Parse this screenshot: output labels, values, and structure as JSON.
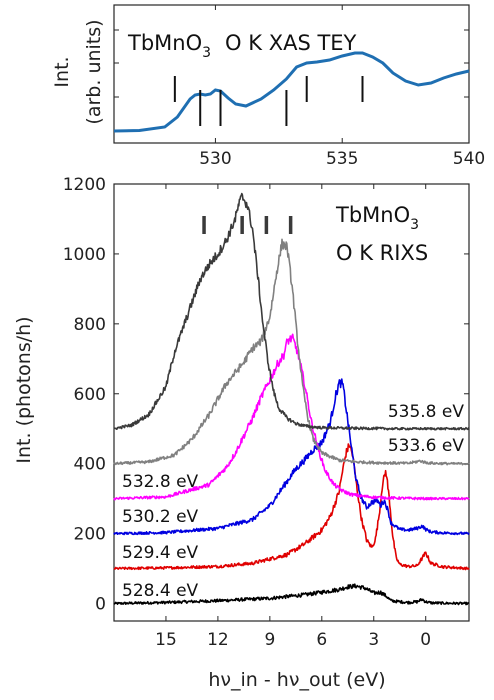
{
  "chart_data": [
    {
      "panel": "top",
      "type": "line",
      "title_prefix": "TbMnO",
      "title_sub": "3",
      "title_suffix": "O K  XAS TEY",
      "ylabel_line1": "Int.",
      "ylabel_line2": "(arb. units)",
      "xlim": [
        526,
        540
      ],
      "xticks": [
        530,
        535,
        540
      ],
      "tick_labels": [
        "530",
        "535",
        "540"
      ],
      "series": [
        {
          "color": "#1f6fb2",
          "x": [
            526,
            527,
            528,
            528.5,
            529,
            529.2,
            529.4,
            529.6,
            529.8,
            530,
            530.2,
            530.5,
            530.8,
            531.2,
            531.8,
            532.3,
            532.8,
            533.2,
            533.6,
            534,
            534.5,
            535,
            535.5,
            535.8,
            536.2,
            536.6,
            537,
            537.5,
            538,
            538.5,
            539,
            539.5,
            540
          ],
          "y": [
            0.02,
            0.025,
            0.06,
            0.16,
            0.34,
            0.38,
            0.39,
            0.38,
            0.39,
            0.43,
            0.42,
            0.35,
            0.29,
            0.27,
            0.34,
            0.43,
            0.54,
            0.66,
            0.7,
            0.71,
            0.73,
            0.77,
            0.8,
            0.8,
            0.76,
            0.7,
            0.6,
            0.52,
            0.48,
            0.5,
            0.55,
            0.59,
            0.62
          ]
        }
      ],
      "markers": [
        {
          "x": 528.4,
          "level": "high"
        },
        {
          "x": 529.4,
          "level": "low"
        },
        {
          "x": 530.2,
          "level": "low"
        },
        {
          "x": 532.8,
          "level": "low"
        },
        {
          "x": 533.6,
          "level": "high"
        },
        {
          "x": 535.8,
          "level": "high"
        }
      ]
    },
    {
      "panel": "bottom",
      "type": "line",
      "ylabel": "Int. (photons/h)",
      "xlabel": "hν_in - hν_out (eV)",
      "xlim": [
        18,
        -2.5
      ],
      "ylim": [
        -50,
        1200
      ],
      "xticks": [
        15,
        12,
        9,
        6,
        3,
        0
      ],
      "tick_labels_x": [
        "15",
        "12",
        "9",
        "6",
        "3",
        "0"
      ],
      "yticks": [
        0,
        200,
        400,
        600,
        800,
        1000,
        1200
      ],
      "tick_labels_y": [
        "0",
        "200",
        "400",
        "600",
        "800",
        "1000",
        "1200"
      ],
      "annotation_prefix": "TbMnO",
      "annotation_sub": "3",
      "annotation_line2": "O K RIXS",
      "markers_x": [
        12.8,
        10.6,
        9.2,
        7.8
      ],
      "series": [
        {
          "name": "528.4 eV",
          "color": "#000000",
          "offset": 0,
          "x": [
            18,
            15,
            12,
            9,
            7,
            5,
            4.5,
            4,
            3.5,
            3,
            2.6,
            2.3,
            2,
            1.5,
            1,
            0.5,
            0.2,
            0,
            -0.3,
            -1,
            -2.5
          ],
          "y": [
            0,
            3,
            8,
            15,
            25,
            40,
            48,
            50,
            44,
            30,
            32,
            22,
            8,
            5,
            3,
            5,
            12,
            5,
            2,
            1,
            0
          ]
        },
        {
          "name": "529.4 eV",
          "color": "#e00000",
          "offset": 100,
          "x": [
            18,
            15,
            12,
            10,
            8,
            7,
            6,
            5.5,
            5,
            4.8,
            4.6,
            4.4,
            4.2,
            4,
            3.7,
            3.4,
            3.1,
            2.9,
            2.7,
            2.5,
            2.3,
            2.1,
            1.9,
            1.7,
            1.5,
            1,
            0.5,
            0.2,
            0,
            -0.3,
            -1,
            -2.5
          ],
          "y": [
            0,
            2,
            6,
            15,
            40,
            70,
            110,
            150,
            220,
            280,
            330,
            355,
            320,
            240,
            140,
            80,
            60,
            85,
            150,
            240,
            280,
            200,
            90,
            30,
            12,
            6,
            8,
            30,
            45,
            15,
            5,
            0
          ]
        },
        {
          "name": "530.2 eV",
          "color": "#0000e0",
          "offset": 200,
          "x": [
            18,
            15,
            12,
            10,
            9,
            8,
            7.5,
            7,
            6.5,
            6,
            5.5,
            5.2,
            5,
            4.8,
            4.6,
            4.3,
            4,
            3.7,
            3.4,
            3.1,
            2.8,
            2.6,
            2.4,
            2.2,
            2,
            1.5,
            1,
            0.5,
            0.2,
            0,
            -0.3,
            -1,
            -2.5
          ],
          "y": [
            0,
            3,
            15,
            40,
            80,
            150,
            185,
            210,
            240,
            260,
            320,
            395,
            430,
            430,
            360,
            250,
            150,
            100,
            75,
            90,
            95,
            80,
            95,
            70,
            30,
            12,
            10,
            15,
            22,
            12,
            5,
            2,
            0
          ]
        },
        {
          "name": "532.8 eV",
          "color": "#ff00ff",
          "offset": 300,
          "x": [
            18,
            15,
            12.5,
            11.5,
            11,
            10.5,
            10,
            9.5,
            9,
            8.5,
            8.2,
            8,
            7.7,
            7.4,
            7,
            6.6,
            6.2,
            5.8,
            5.3,
            4.8,
            4.3,
            3.8,
            3,
            2,
            1,
            0,
            -1,
            -2.5
          ],
          "y": [
            0,
            5,
            40,
            90,
            130,
            180,
            230,
            290,
            340,
            390,
            410,
            450,
            460,
            420,
            330,
            220,
            140,
            80,
            40,
            22,
            12,
            8,
            4,
            2,
            1,
            0,
            0,
            0
          ]
        },
        {
          "name": "533.6 eV",
          "color": "#808080",
          "offset": 400,
          "x": [
            18,
            16,
            14.5,
            13.5,
            12.5,
            11.5,
            11,
            10.5,
            10,
            9.5,
            9,
            8.6,
            8.3,
            8,
            7.7,
            7.4,
            7.1,
            6.8,
            6.5,
            6,
            5,
            4,
            3,
            2,
            1,
            0.3,
            0,
            -0.5,
            -1.5,
            -2.5
          ],
          "y": [
            0,
            5,
            25,
            70,
            140,
            230,
            260,
            290,
            330,
            350,
            420,
            550,
            630,
            620,
            500,
            350,
            220,
            130,
            70,
            30,
            10,
            5,
            3,
            2,
            1,
            8,
            3,
            1,
            0,
            0
          ]
        },
        {
          "name": "535.8 eV",
          "color": "#3a3a3a",
          "offset": 500,
          "x": [
            18,
            17,
            16,
            15,
            14.5,
            14,
            13.5,
            13,
            12.5,
            12,
            11.5,
            11,
            10.8,
            10.6,
            10.3,
            10,
            9.7,
            9.4,
            9.1,
            8.8,
            8.5,
            8,
            7.5,
            7,
            6.5,
            6,
            5,
            4,
            3,
            2,
            1,
            0,
            -1,
            -2.5
          ],
          "y": [
            0,
            10,
            40,
            120,
            220,
            290,
            360,
            430,
            470,
            500,
            540,
            600,
            640,
            665,
            640,
            570,
            440,
            300,
            190,
            110,
            60,
            30,
            15,
            8,
            5,
            3,
            2,
            1,
            1,
            0,
            0,
            0,
            0,
            0
          ]
        }
      ]
    }
  ]
}
